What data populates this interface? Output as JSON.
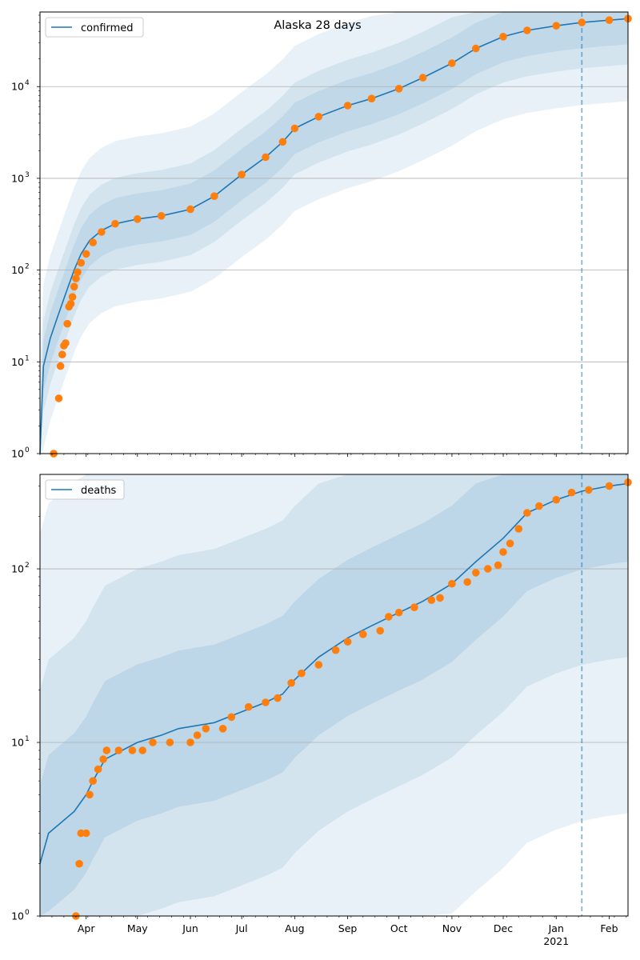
{
  "figure": {
    "title": "Alaska 28 days",
    "colors": {
      "line": "#1f77b4",
      "observed": "#ff7f0e",
      "band": "#1f77b4",
      "grid": "#b0b0b0",
      "forecast_line": "#1f77b4"
    }
  },
  "chart_data": [
    {
      "type": "line",
      "title": "Alaska 28 days",
      "xlabel": "",
      "ylabel": "",
      "yscale": "log",
      "ylim": [
        1,
        65000
      ],
      "xlim": [
        "2020-03-05",
        "2021-02-12"
      ],
      "x_tick_labels": [
        {
          "date": "2020-04-01",
          "label": "Apr"
        },
        {
          "date": "2020-05-01",
          "label": "May"
        },
        {
          "date": "2020-06-01",
          "label": "Jun"
        },
        {
          "date": "2020-07-01",
          "label": "Jul"
        },
        {
          "date": "2020-08-01",
          "label": "Aug"
        },
        {
          "date": "2020-09-01",
          "label": "Sep"
        },
        {
          "date": "2020-10-01",
          "label": "Oct"
        },
        {
          "date": "2020-11-01",
          "label": "Nov"
        },
        {
          "date": "2020-12-01",
          "label": "Dec"
        },
        {
          "date": "2021-01-01",
          "label": "Jan",
          "sublabel": "2021"
        },
        {
          "date": "2021-02-01",
          "label": "Feb"
        }
      ],
      "y_tick_labels": [
        {
          "value": 1,
          "base": "10",
          "exp": "0"
        },
        {
          "value": 10,
          "base": "10",
          "exp": "1"
        },
        {
          "value": 100,
          "base": "10",
          "exp": "2"
        },
        {
          "value": 1000,
          "base": "10",
          "exp": "3"
        },
        {
          "value": 10000,
          "base": "10",
          "exp": "4"
        }
      ],
      "grid": "y-major",
      "legend": {
        "position": "top-left",
        "entries": [
          "confirmed"
        ]
      },
      "forecast_start": "2021-01-16",
      "series": [
        {
          "name": "confirmed",
          "kind": "model-line",
          "points": [
            [
              "2020-03-05",
              1
            ],
            [
              "2020-03-07",
              9
            ],
            [
              "2020-03-11",
              18
            ],
            [
              "2020-03-15",
              30
            ],
            [
              "2020-03-20",
              55
            ],
            [
              "2020-03-25",
              100
            ],
            [
              "2020-03-29",
              150
            ],
            [
              "2020-04-03",
              210
            ],
            [
              "2020-04-10",
              270
            ],
            [
              "2020-04-18",
              320
            ],
            [
              "2020-05-01",
              360
            ],
            [
              "2020-05-15",
              390
            ],
            [
              "2020-06-01",
              460
            ],
            [
              "2020-06-15",
              640
            ],
            [
              "2020-07-01",
              1100
            ],
            [
              "2020-07-15",
              1700
            ],
            [
              "2020-07-25",
              2500
            ],
            [
              "2020-08-01",
              3500
            ],
            [
              "2020-08-15",
              4700
            ],
            [
              "2020-09-01",
              6200
            ],
            [
              "2020-09-15",
              7400
            ],
            [
              "2020-10-01",
              9500
            ],
            [
              "2020-10-15",
              12500
            ],
            [
              "2020-11-01",
              18000
            ],
            [
              "2020-11-15",
              26000
            ],
            [
              "2020-12-01",
              35000
            ],
            [
              "2020-12-15",
              41000
            ],
            [
              "2021-01-01",
              46000
            ],
            [
              "2021-01-16",
              50000
            ],
            [
              "2021-02-01",
              53000
            ],
            [
              "2021-02-12",
              55000
            ]
          ]
        },
        {
          "name": "observed",
          "kind": "scatter",
          "points": [
            [
              "2020-03-13",
              1
            ],
            [
              "2020-03-16",
              4
            ],
            [
              "2020-03-17",
              9
            ],
            [
              "2020-03-18",
              12
            ],
            [
              "2020-03-19",
              15
            ],
            [
              "2020-03-20",
              16
            ],
            [
              "2020-03-21",
              26
            ],
            [
              "2020-03-22",
              40
            ],
            [
              "2020-03-23",
              43
            ],
            [
              "2020-03-24",
              51
            ],
            [
              "2020-03-25",
              66
            ],
            [
              "2020-03-26",
              81
            ],
            [
              "2020-03-27",
              95
            ],
            [
              "2020-03-29",
              120
            ],
            [
              "2020-04-01",
              150
            ],
            [
              "2020-04-05",
              200
            ],
            [
              "2020-04-10",
              260
            ],
            [
              "2020-04-18",
              320
            ],
            [
              "2020-05-01",
              360
            ],
            [
              "2020-05-15",
              390
            ],
            [
              "2020-06-01",
              460
            ],
            [
              "2020-06-15",
              640
            ],
            [
              "2020-07-01",
              1100
            ],
            [
              "2020-07-15",
              1700
            ],
            [
              "2020-07-25",
              2500
            ],
            [
              "2020-08-01",
              3500
            ],
            [
              "2020-08-15",
              4700
            ],
            [
              "2020-09-01",
              6200
            ],
            [
              "2020-09-15",
              7400
            ],
            [
              "2020-10-01",
              9500
            ],
            [
              "2020-10-15",
              12500
            ],
            [
              "2020-11-01",
              18000
            ],
            [
              "2020-11-15",
              26000
            ],
            [
              "2020-12-01",
              35000
            ],
            [
              "2020-12-15",
              41000
            ],
            [
              "2021-01-01",
              46000
            ],
            [
              "2021-01-16",
              50000
            ],
            [
              "2021-02-01",
              53000
            ],
            [
              "2021-02-12",
              55000
            ]
          ]
        }
      ]
    },
    {
      "type": "line",
      "title": "",
      "xlabel": "",
      "ylabel": "",
      "yscale": "log",
      "ylim": [
        1,
        350
      ],
      "xlim": [
        "2020-03-05",
        "2021-02-12"
      ],
      "x_tick_labels": [
        {
          "date": "2020-04-01",
          "label": "Apr"
        },
        {
          "date": "2020-05-01",
          "label": "May"
        },
        {
          "date": "2020-06-01",
          "label": "Jun"
        },
        {
          "date": "2020-07-01",
          "label": "Jul"
        },
        {
          "date": "2020-08-01",
          "label": "Aug"
        },
        {
          "date": "2020-09-01",
          "label": "Sep"
        },
        {
          "date": "2020-10-01",
          "label": "Oct"
        },
        {
          "date": "2020-11-01",
          "label": "Nov"
        },
        {
          "date": "2020-12-01",
          "label": "Dec"
        },
        {
          "date": "2021-01-01",
          "label": "Jan",
          "sublabel": "2021"
        },
        {
          "date": "2021-02-01",
          "label": "Feb"
        }
      ],
      "y_tick_labels": [
        {
          "value": 1,
          "base": "10",
          "exp": "0"
        },
        {
          "value": 10,
          "base": "10",
          "exp": "1"
        },
        {
          "value": 100,
          "base": "10",
          "exp": "2"
        }
      ],
      "grid": "y-major",
      "legend": {
        "position": "top-left",
        "entries": [
          "deaths"
        ]
      },
      "forecast_start": "2021-01-16",
      "series": [
        {
          "name": "deaths",
          "kind": "model-line",
          "points": [
            [
              "2020-03-05",
              2
            ],
            [
              "2020-03-10",
              3
            ],
            [
              "2020-03-25",
              4
            ],
            [
              "2020-04-01",
              5
            ],
            [
              "2020-04-05",
              6
            ],
            [
              "2020-04-12",
              8
            ],
            [
              "2020-04-22",
              9
            ],
            [
              "2020-05-01",
              10
            ],
            [
              "2020-05-15",
              11
            ],
            [
              "2020-05-25",
              12
            ],
            [
              "2020-06-15",
              13
            ],
            [
              "2020-07-01",
              15
            ],
            [
              "2020-07-15",
              17
            ],
            [
              "2020-07-25",
              19
            ],
            [
              "2020-08-01",
              23
            ],
            [
              "2020-08-15",
              31
            ],
            [
              "2020-09-01",
              40
            ],
            [
              "2020-09-15",
              47
            ],
            [
              "2020-10-01",
              56
            ],
            [
              "2020-10-15",
              65
            ],
            [
              "2020-11-01",
              82
            ],
            [
              "2020-11-15",
              110
            ],
            [
              "2020-12-01",
              150
            ],
            [
              "2020-12-15",
              210
            ],
            [
              "2021-01-01",
              250
            ],
            [
              "2021-01-16",
              280
            ],
            [
              "2021-02-01",
              300
            ],
            [
              "2021-02-12",
              310
            ]
          ]
        },
        {
          "name": "observed",
          "kind": "scatter",
          "points": [
            [
              "2020-03-26",
              1
            ],
            [
              "2020-03-28",
              2
            ],
            [
              "2020-03-29",
              3
            ],
            [
              "2020-04-01",
              3
            ],
            [
              "2020-04-03",
              5
            ],
            [
              "2020-04-05",
              6
            ],
            [
              "2020-04-08",
              7
            ],
            [
              "2020-04-11",
              8
            ],
            [
              "2020-04-13",
              9
            ],
            [
              "2020-04-20",
              9
            ],
            [
              "2020-04-28",
              9
            ],
            [
              "2020-05-04",
              9
            ],
            [
              "2020-05-10",
              10
            ],
            [
              "2020-05-20",
              10
            ],
            [
              "2020-06-01",
              10
            ],
            [
              "2020-06-05",
              11
            ],
            [
              "2020-06-10",
              12
            ],
            [
              "2020-06-20",
              12
            ],
            [
              "2020-06-25",
              14
            ],
            [
              "2020-07-05",
              16
            ],
            [
              "2020-07-15",
              17
            ],
            [
              "2020-07-22",
              18
            ],
            [
              "2020-07-30",
              22
            ],
            [
              "2020-08-05",
              25
            ],
            [
              "2020-08-15",
              28
            ],
            [
              "2020-08-25",
              34
            ],
            [
              "2020-09-01",
              38
            ],
            [
              "2020-09-10",
              42
            ],
            [
              "2020-09-20",
              44
            ],
            [
              "2020-09-25",
              53
            ],
            [
              "2020-10-01",
              56
            ],
            [
              "2020-10-10",
              60
            ],
            [
              "2020-10-20",
              66
            ],
            [
              "2020-10-25",
              68
            ],
            [
              "2020-11-01",
              82
            ],
            [
              "2020-11-10",
              84
            ],
            [
              "2020-11-15",
              95
            ],
            [
              "2020-11-22",
              100
            ],
            [
              "2020-11-28",
              105
            ],
            [
              "2020-12-01",
              125
            ],
            [
              "2020-12-05",
              140
            ],
            [
              "2020-12-10",
              170
            ],
            [
              "2020-12-15",
              210
            ],
            [
              "2020-12-22",
              230
            ],
            [
              "2021-01-01",
              250
            ],
            [
              "2021-01-10",
              275
            ],
            [
              "2021-01-20",
              285
            ],
            [
              "2021-02-01",
              300
            ],
            [
              "2021-02-12",
              315
            ]
          ]
        }
      ]
    }
  ]
}
